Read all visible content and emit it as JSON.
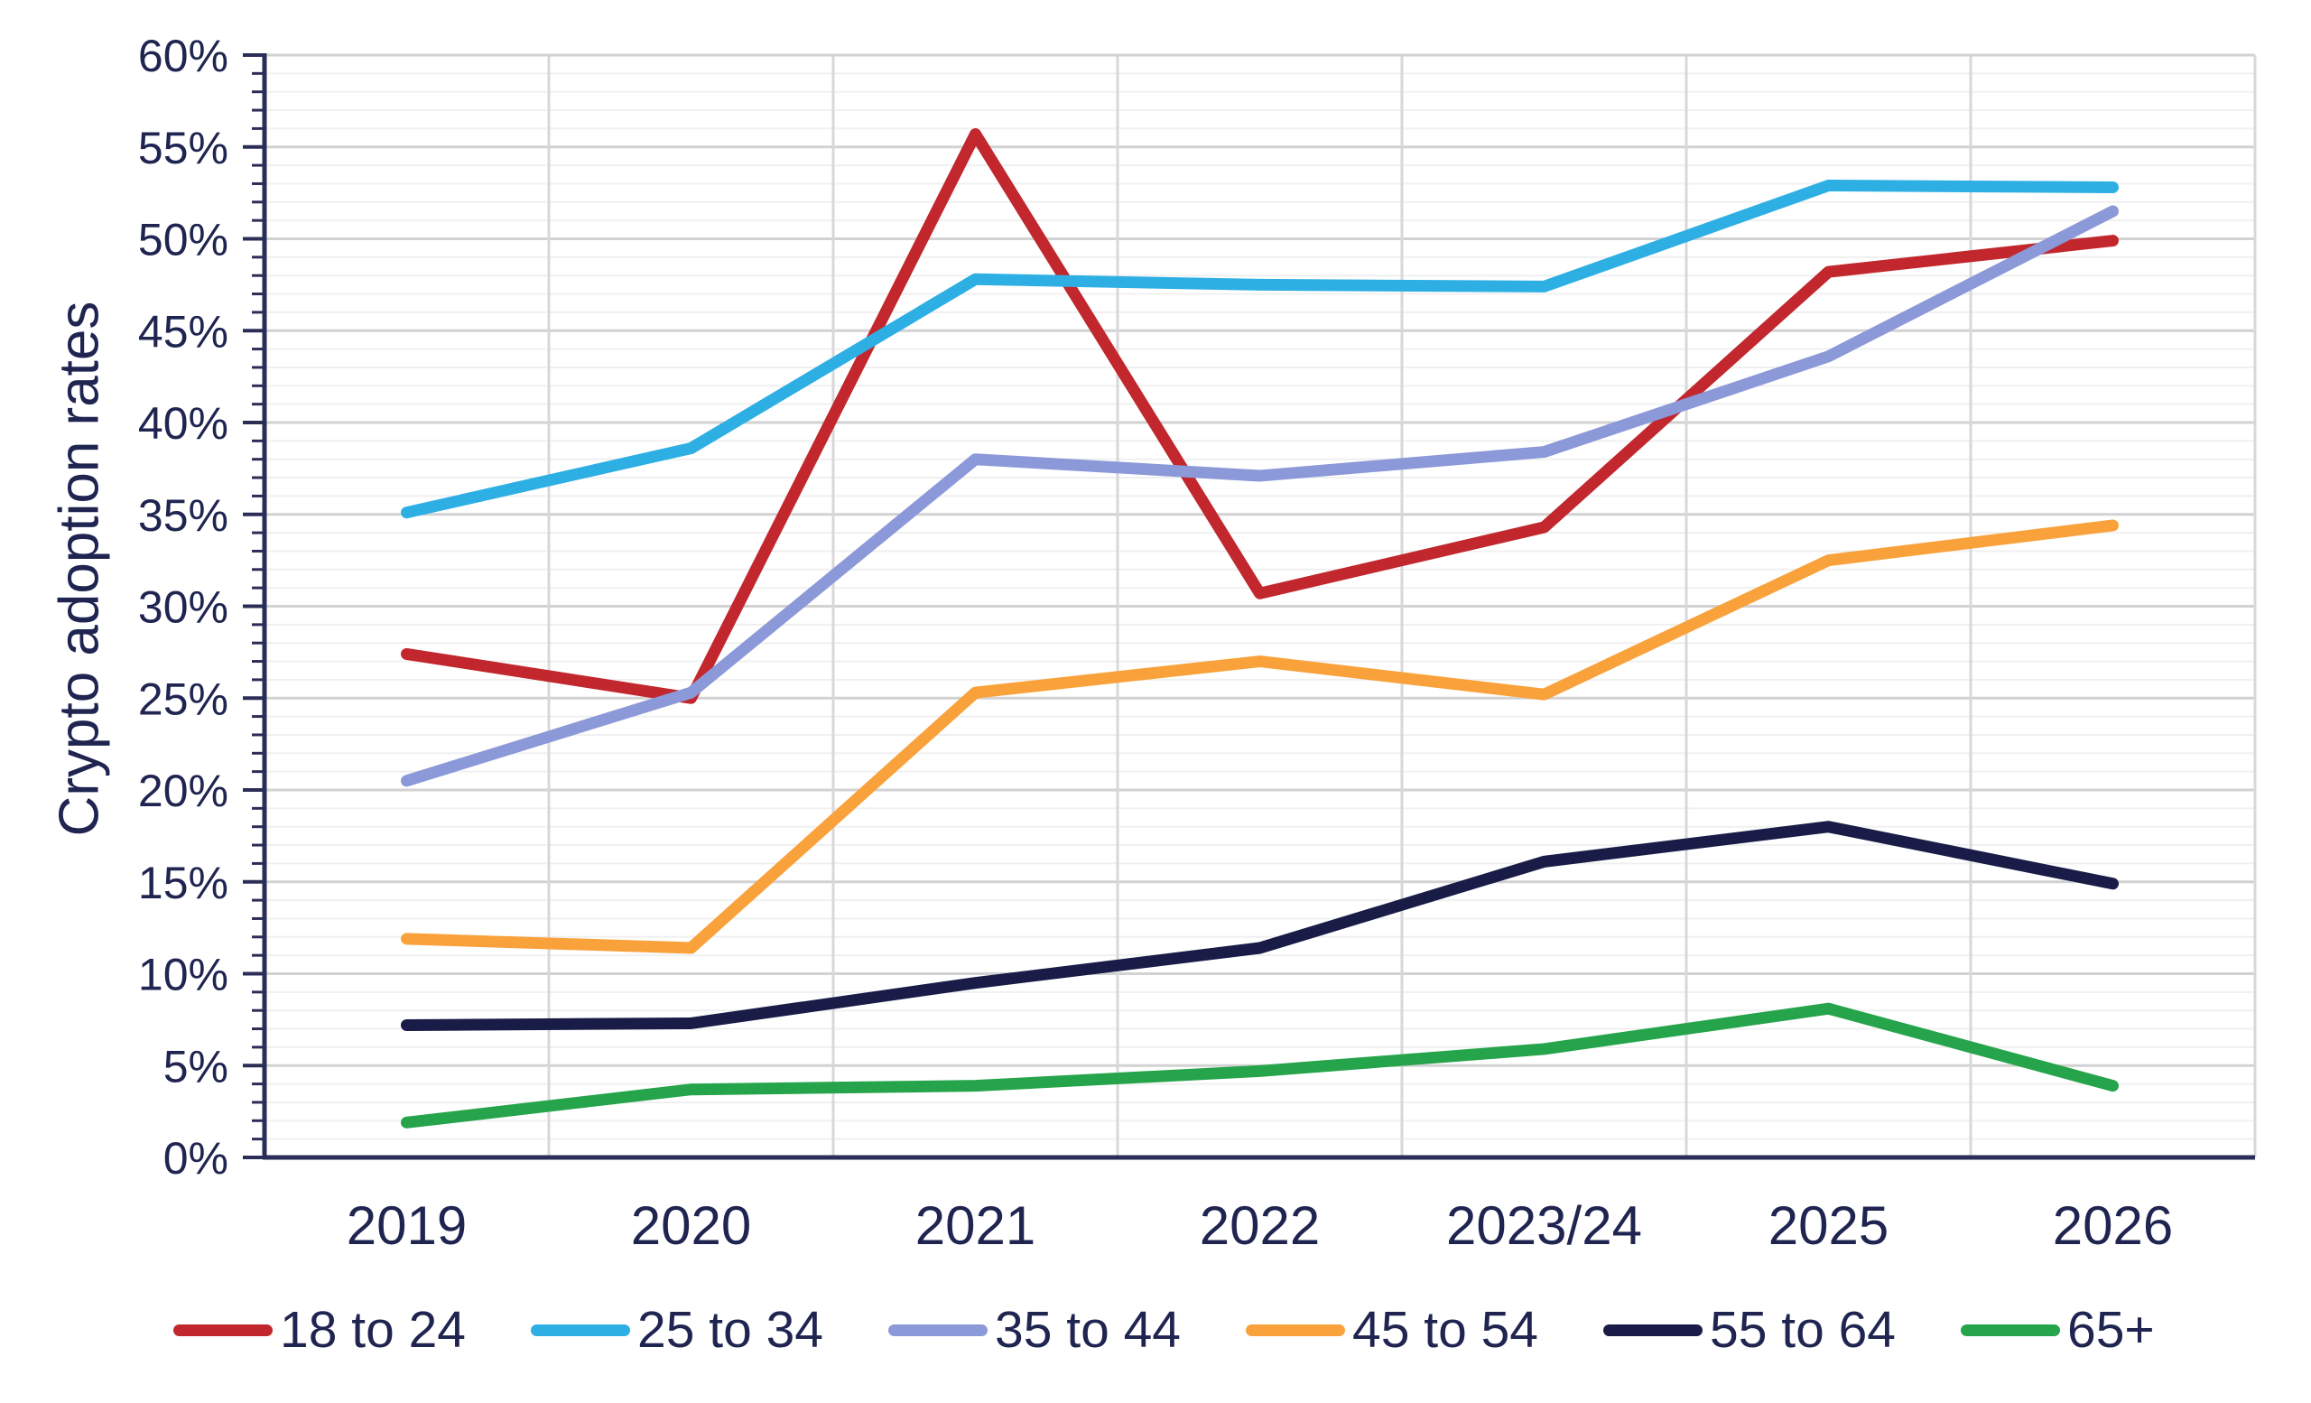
{
  "chart_data": {
    "type": "line",
    "title": "",
    "ylabel": "Crypto adoption rates",
    "xlabel": "",
    "categories": [
      "2019",
      "2020",
      "2021",
      "2022",
      "2023/24",
      "2025",
      "2026"
    ],
    "y_axis": {
      "min": 0,
      "max": 60,
      "major_step": 5,
      "minor_step": 1,
      "tick_format": "percent"
    },
    "grid": {
      "horizontal_minor": true,
      "horizontal_major": true,
      "vertical_at_category_boundaries": true
    },
    "legend_position": "bottom",
    "series": [
      {
        "name": "18 to 24",
        "color": "#c1272d",
        "values": [
          27.4,
          25.0,
          55.7,
          30.7,
          34.3,
          48.2,
          49.9
        ]
      },
      {
        "name": "25 to 34",
        "color": "#2eafe4",
        "values": [
          35.1,
          38.6,
          47.8,
          47.5,
          47.4,
          52.9,
          52.8
        ]
      },
      {
        "name": "35 to 44",
        "color": "#8c99d8",
        "values": [
          20.5,
          25.3,
          38.0,
          37.1,
          38.4,
          43.6,
          51.5
        ]
      },
      {
        "name": "45 to 54",
        "color": "#f9a13a",
        "values": [
          11.9,
          11.4,
          25.3,
          27.0,
          25.2,
          32.5,
          34.4
        ]
      },
      {
        "name": "55 to 64",
        "color": "#181c47",
        "values": [
          7.2,
          7.3,
          9.5,
          11.4,
          16.1,
          18.0,
          14.9
        ]
      },
      {
        "name": "65+",
        "color": "#26a44b",
        "values": [
          1.9,
          3.7,
          3.9,
          4.7,
          5.9,
          8.1,
          3.9
        ]
      }
    ]
  },
  "y_tick_labels": [
    "0%",
    "5%",
    "10%",
    "15%",
    "20%",
    "25%",
    "30%",
    "35%",
    "40%",
    "45%",
    "50%",
    "55%",
    "60%"
  ],
  "colors": {
    "text": "#1f2450",
    "axis": "#2a2e57",
    "grid_minor": "#f0f0f0",
    "grid_major": "#d2d2d2",
    "grid_vertical": "#d8d8d8",
    "background": "#ffffff"
  }
}
